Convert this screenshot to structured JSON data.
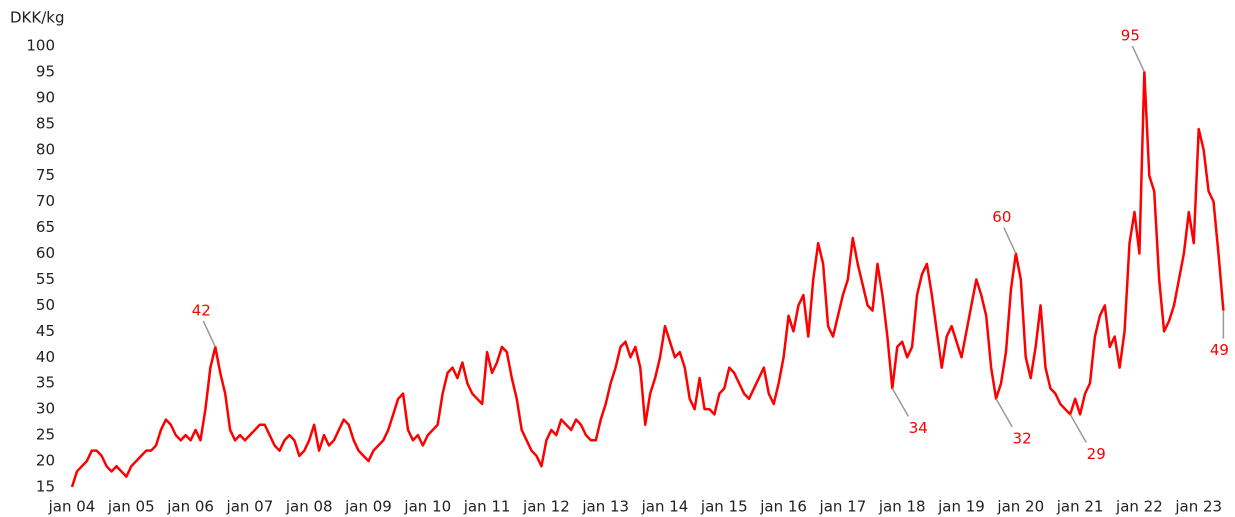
{
  "chart_data": {
    "type": "line",
    "y_label": "DKK/kg",
    "color": "#ff0000",
    "ylim": [
      15,
      100
    ],
    "yticks": [
      15,
      20,
      25,
      30,
      35,
      40,
      45,
      50,
      55,
      60,
      65,
      70,
      75,
      80,
      85,
      90,
      95,
      100
    ],
    "categories": [
      "jan 04",
      null,
      null,
      null,
      null,
      null,
      null,
      null,
      null,
      null,
      null,
      null,
      "jan 05",
      null,
      null,
      null,
      null,
      null,
      null,
      null,
      null,
      null,
      null,
      null,
      "jan 06",
      null,
      null,
      null,
      null,
      null,
      null,
      null,
      null,
      null,
      null,
      null,
      "jan 07",
      null,
      null,
      null,
      null,
      null,
      null,
      null,
      null,
      null,
      null,
      null,
      "jan 08",
      null,
      null,
      null,
      null,
      null,
      null,
      null,
      null,
      null,
      null,
      null,
      "jan 09",
      null,
      null,
      null,
      null,
      null,
      null,
      null,
      null,
      null,
      null,
      null,
      "jan 10",
      null,
      null,
      null,
      null,
      null,
      null,
      null,
      null,
      null,
      null,
      null,
      "jan 11",
      null,
      null,
      null,
      null,
      null,
      null,
      null,
      null,
      null,
      null,
      null,
      "jan 12",
      null,
      null,
      null,
      null,
      null,
      null,
      null,
      null,
      null,
      null,
      null,
      "jan 13",
      null,
      null,
      null,
      null,
      null,
      null,
      null,
      null,
      null,
      null,
      null,
      "jan 14",
      null,
      null,
      null,
      null,
      null,
      null,
      null,
      null,
      null,
      null,
      null,
      "jan 15",
      null,
      null,
      null,
      null,
      null,
      null,
      null,
      null,
      null,
      null,
      null,
      "jan 16",
      null,
      null,
      null,
      null,
      null,
      null,
      null,
      null,
      null,
      null,
      null,
      "jan 17",
      null,
      null,
      null,
      null,
      null,
      null,
      null,
      null,
      null,
      null,
      null,
      "jan 18",
      null,
      null,
      null,
      null,
      null,
      null,
      null,
      null,
      null,
      null,
      null,
      "jan 19",
      null,
      null,
      null,
      null,
      null,
      null,
      null,
      null,
      null,
      null,
      null,
      "jan 20",
      null,
      null,
      null,
      null,
      null,
      null,
      null,
      null,
      null,
      null,
      null,
      "jan 21",
      null,
      null,
      null,
      null,
      null,
      null,
      null,
      null,
      null,
      null,
      null,
      "jan 22",
      null,
      null,
      null,
      null,
      null,
      null,
      null,
      null,
      null,
      null,
      null,
      "jan 23",
      null,
      null,
      null,
      null,
      null
    ],
    "values": [
      15,
      18,
      19,
      20,
      22,
      22,
      21,
      19,
      18,
      19,
      18,
      17,
      19,
      20,
      21,
      22,
      22,
      23,
      26,
      28,
      27,
      25,
      24,
      25,
      24,
      26,
      24,
      30,
      38,
      42,
      37,
      33,
      26,
      24,
      25,
      24,
      25,
      26,
      27,
      27,
      25,
      23,
      22,
      24,
      25,
      24,
      21,
      22,
      24,
      27,
      22,
      25,
      23,
      24,
      26,
      28,
      27,
      24,
      22,
      21,
      20,
      22,
      23,
      24,
      26,
      29,
      32,
      33,
      26,
      24,
      25,
      23,
      25,
      26,
      27,
      33,
      37,
      38,
      36,
      39,
      35,
      33,
      32,
      31,
      41,
      37,
      39,
      42,
      41,
      36,
      32,
      26,
      24,
      22,
      21,
      19,
      24,
      26,
      25,
      28,
      27,
      26,
      28,
      27,
      25,
      24,
      24,
      28,
      31,
      35,
      38,
      42,
      43,
      40,
      42,
      38,
      27,
      33,
      36,
      40,
      46,
      43,
      40,
      41,
      38,
      32,
      30,
      36,
      30,
      30,
      29,
      33,
      34,
      38,
      37,
      35,
      33,
      32,
      34,
      36,
      38,
      33,
      31,
      35,
      40,
      48,
      45,
      50,
      52,
      44,
      55,
      62,
      58,
      46,
      44,
      48,
      52,
      55,
      63,
      58,
      54,
      50,
      49,
      58,
      52,
      44,
      34,
      42,
      43,
      40,
      42,
      52,
      56,
      58,
      52,
      45,
      38,
      44,
      46,
      43,
      40,
      45,
      50,
      55,
      52,
      48,
      38,
      32,
      35,
      41,
      53,
      60,
      55,
      40,
      36,
      42,
      50,
      38,
      34,
      33,
      31,
      30,
      29,
      32,
      29,
      33,
      35,
      44,
      48,
      50,
      42,
      44,
      38,
      45,
      62,
      68,
      60,
      95,
      75,
      72,
      55,
      45,
      47,
      50,
      55,
      60,
      68,
      62,
      84,
      80,
      72,
      70,
      60,
      49
    ],
    "value_labels": [
      null,
      null,
      null,
      null,
      null,
      null,
      null,
      null,
      null,
      null,
      null,
      null,
      null,
      null,
      null,
      null,
      null,
      null,
      null,
      null,
      null,
      null,
      null,
      null,
      null,
      null,
      null,
      null,
      null,
      "42",
      null,
      null,
      null,
      null,
      null,
      null,
      null,
      null,
      null,
      null,
      null,
      null,
      null,
      null,
      null,
      null,
      null,
      null,
      null,
      null,
      null,
      null,
      null,
      null,
      null,
      null,
      null,
      null,
      null,
      null,
      null,
      null,
      null,
      null,
      null,
      null,
      null,
      null,
      null,
      null,
      null,
      null,
      null,
      null,
      null,
      null,
      null,
      null,
      null,
      null,
      null,
      null,
      null,
      null,
      null,
      null,
      null,
      null,
      null,
      null,
      null,
      null,
      null,
      null,
      null,
      null,
      null,
      null,
      null,
      null,
      null,
      null,
      null,
      null,
      null,
      null,
      null,
      null,
      null,
      null,
      null,
      null,
      null,
      null,
      null,
      null,
      null,
      null,
      null,
      null,
      null,
      null,
      null,
      null,
      null,
      null,
      null,
      null,
      null,
      null,
      null,
      null,
      null,
      null,
      null,
      null,
      null,
      null,
      null,
      null,
      null,
      null,
      null,
      null,
      null,
      null,
      null,
      null,
      null,
      null,
      null,
      null,
      null,
      null,
      null,
      null,
      null,
      null,
      null,
      null,
      null,
      null,
      null,
      null,
      null,
      null,
      "34",
      null,
      null,
      null,
      null,
      null,
      null,
      null,
      null,
      null,
      null,
      null,
      null,
      null,
      null,
      null,
      null,
      null,
      null,
      null,
      null,
      "32",
      null,
      null,
      null,
      "60",
      null,
      null,
      null,
      null,
      null,
      null,
      null,
      null,
      null,
      null,
      "29",
      null,
      null,
      null,
      null,
      null,
      null,
      null,
      null,
      null,
      null,
      null,
      null,
      null,
      null,
      "95",
      null,
      null,
      null,
      null,
      null,
      null,
      null,
      null,
      null,
      null,
      null,
      null,
      null,
      null,
      null,
      "49"
    ]
  }
}
